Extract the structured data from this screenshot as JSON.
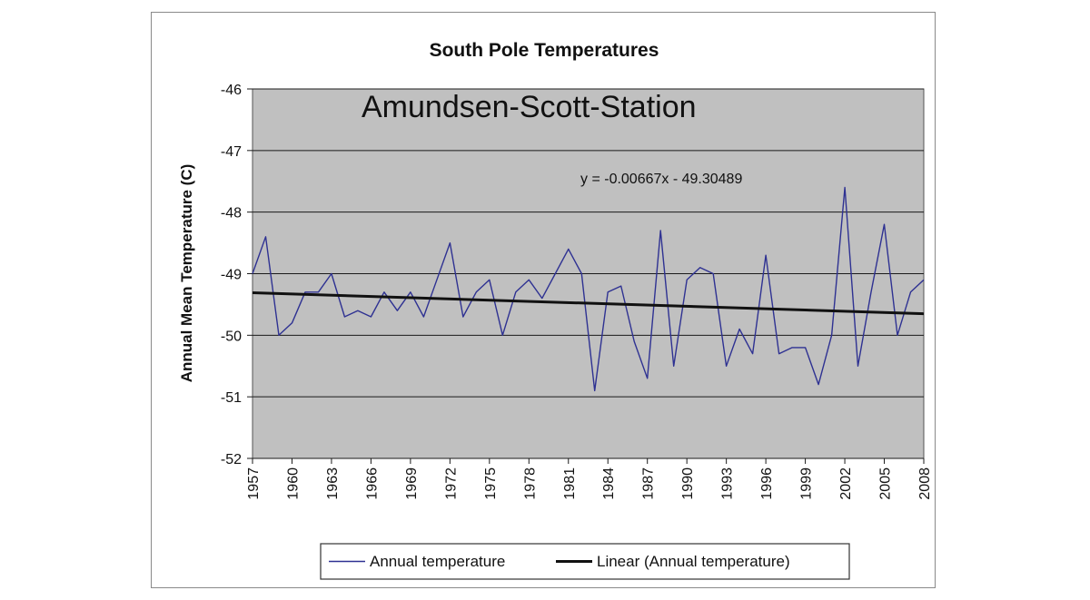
{
  "chart_data": {
    "type": "line",
    "title": "South Pole Temperatures",
    "ylabel": "Annual Mean Temperature (C)",
    "xlabel": "",
    "ylim": [
      -52,
      -46
    ],
    "yticks": [
      "-46",
      "-47",
      "-48",
      "-49",
      "-50",
      "-51",
      "-52"
    ],
    "xlim": [
      1957,
      2008
    ],
    "xticks": [
      "1957",
      "1960",
      "1963",
      "1966",
      "1969",
      "1972",
      "1975",
      "1978",
      "1981",
      "1984",
      "1987",
      "1990",
      "1993",
      "1996",
      "1999",
      "2002",
      "2005",
      "2008"
    ],
    "grid": "horizontal",
    "background": "#c0c0c0",
    "annotations": {
      "station": "Amundsen-Scott-Station",
      "equation": "y = -0.00667x - 49.30489"
    },
    "legend": {
      "placement": "bottom",
      "entries": [
        "Annual temperature",
        "Linear (Annual temperature)"
      ]
    },
    "series": [
      {
        "name": "Annual temperature",
        "color": "#2e3192",
        "x": [
          1957,
          1958,
          1959,
          1960,
          1961,
          1962,
          1963,
          1964,
          1965,
          1966,
          1967,
          1968,
          1969,
          1970,
          1971,
          1972,
          1973,
          1974,
          1975,
          1976,
          1977,
          1978,
          1979,
          1980,
          1981,
          1982,
          1983,
          1984,
          1985,
          1986,
          1987,
          1988,
          1989,
          1990,
          1991,
          1992,
          1993,
          1994,
          1995,
          1996,
          1997,
          1998,
          1999,
          2000,
          2001,
          2002,
          2003,
          2004,
          2005,
          2006,
          2007,
          2008
        ],
        "values": [
          -49.0,
          -48.4,
          -50.0,
          -49.8,
          -49.3,
          -49.3,
          -49.0,
          -49.7,
          -49.6,
          -49.7,
          -49.3,
          -49.6,
          -49.3,
          -49.7,
          -49.1,
          -48.5,
          -49.7,
          -49.3,
          -49.1,
          -50.0,
          -49.3,
          -49.1,
          -49.4,
          -49.0,
          -48.6,
          -49.0,
          -50.9,
          -49.3,
          -49.2,
          -50.1,
          -50.7,
          -48.3,
          -50.5,
          -49.1,
          -48.9,
          -49.0,
          -50.5,
          -49.9,
          -50.3,
          -48.7,
          -50.3,
          -50.2,
          -50.2,
          -50.8,
          -50.0,
          -47.6,
          -50.5,
          -49.3,
          -48.2,
          -50.0,
          -49.3,
          -49.1
        ]
      },
      {
        "name": "Linear (Annual temperature)",
        "color": "#111111",
        "x": [
          1957,
          2008
        ],
        "values": [
          -49.31,
          -49.65
        ]
      }
    ]
  }
}
